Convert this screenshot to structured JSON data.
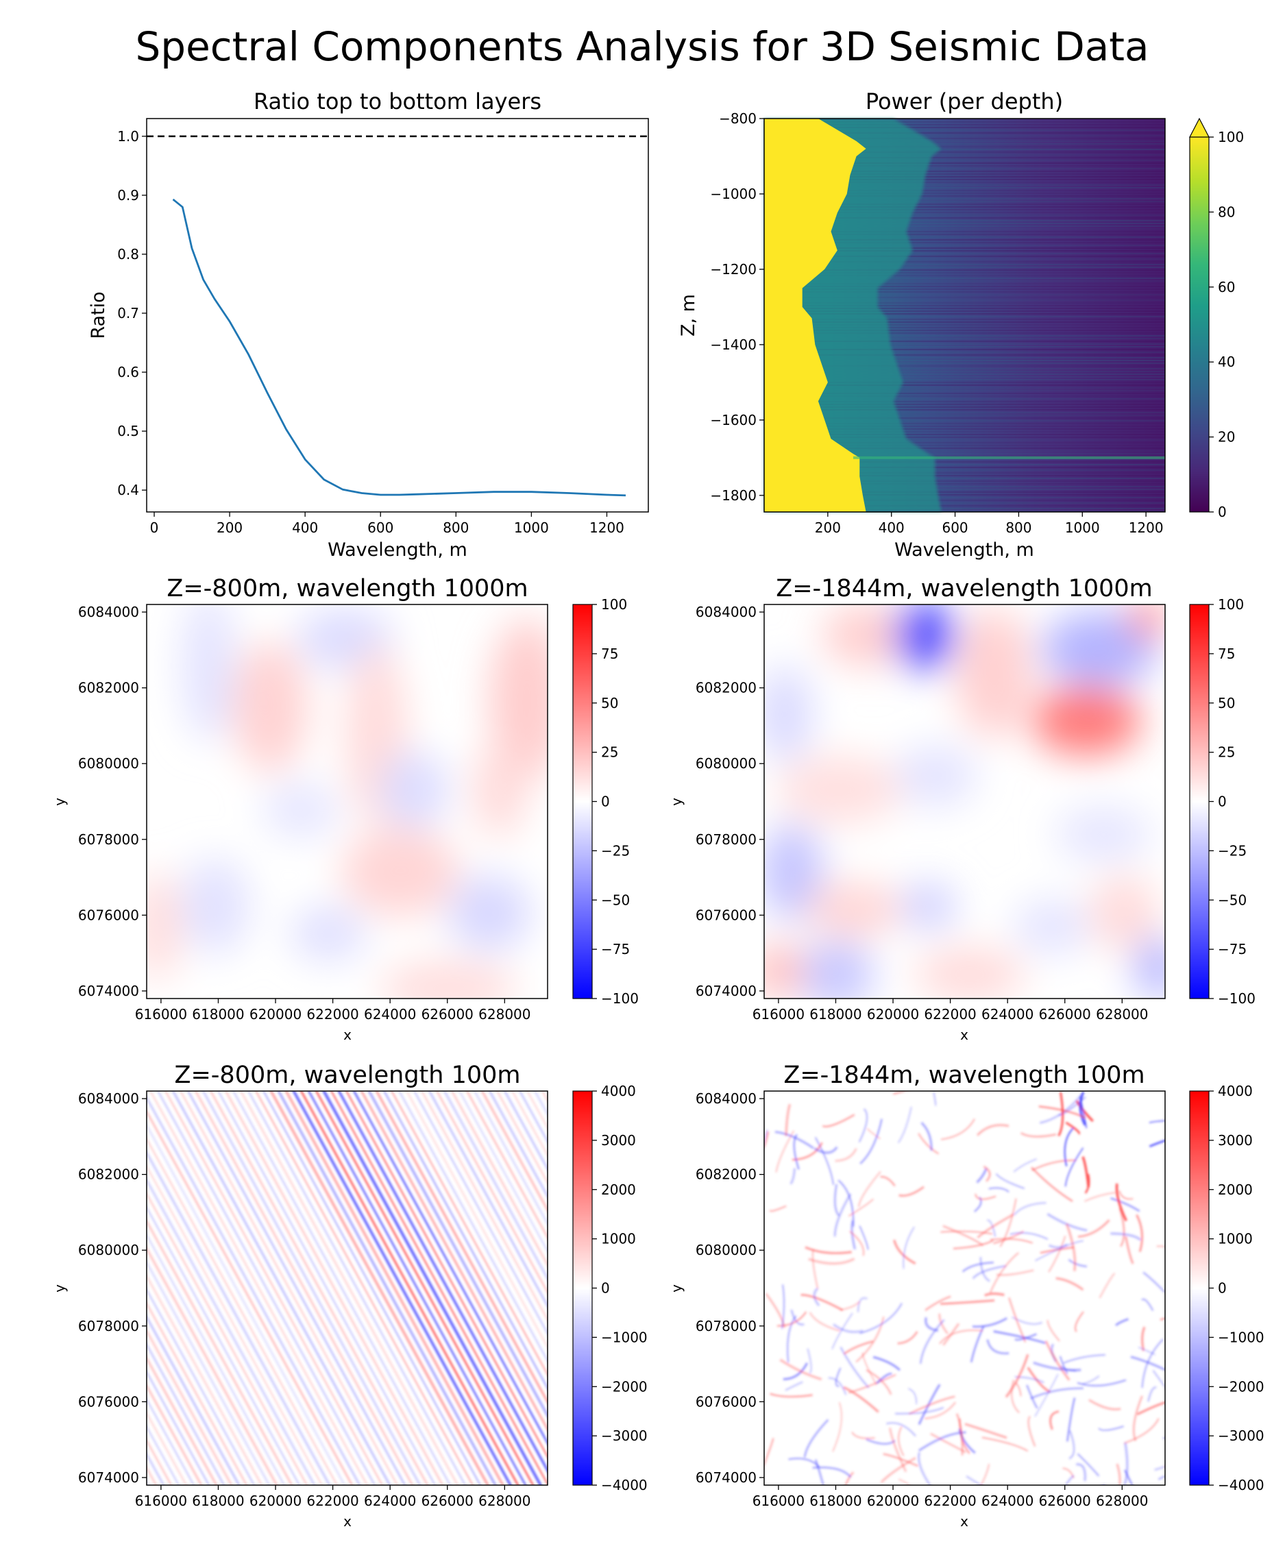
{
  "figure": {
    "title": "Spectral Components Analysis for 3D Seismic Data"
  },
  "chart_data": [
    {
      "type": "line",
      "title": "Ratio top to bottom layers",
      "xlabel": "Wavelength, m",
      "ylabel": "Ratio",
      "xlim": [
        -20,
        1310
      ],
      "ylim": [
        0.363,
        1.03
      ],
      "xticks": [
        0,
        200,
        400,
        600,
        800,
        1000,
        1200
      ],
      "yticks": [
        0.4,
        0.5,
        0.6,
        0.7,
        0.8,
        0.9,
        1.0
      ],
      "ytick_labels": [
        "0.4",
        "0.5",
        "0.6",
        "0.7",
        "0.8",
        "0.9",
        "1.0"
      ],
      "reference_line": {
        "y": 1.0,
        "style": "dashed",
        "color": "#000000"
      },
      "series": [
        {
          "color": "#1f77b4",
          "x": [
            50,
            75,
            100,
            130,
            160,
            200,
            250,
            300,
            350,
            400,
            450,
            500,
            550,
            600,
            650,
            700,
            800,
            900,
            1000,
            1100,
            1200,
            1250
          ],
          "y": [
            0.893,
            0.88,
            0.81,
            0.757,
            0.724,
            0.686,
            0.63,
            0.565,
            0.503,
            0.452,
            0.418,
            0.401,
            0.395,
            0.392,
            0.392,
            0.393,
            0.395,
            0.397,
            0.397,
            0.395,
            0.392,
            0.391
          ]
        }
      ]
    },
    {
      "type": "heatmap",
      "title": "Power (per depth)",
      "xlabel": "Wavelength, m",
      "ylabel": "Z, m",
      "xlim": [
        0,
        1260
      ],
      "ylim": [
        -1844,
        -800
      ],
      "xticks": [
        200,
        400,
        600,
        800,
        1000,
        1200
      ],
      "yticks": [
        -800,
        -1000,
        -1200,
        -1400,
        -1600,
        -1800
      ],
      "ytick_labels": [
        "−800",
        "−1000",
        "−1200",
        "−1400",
        "−1600",
        "−1800"
      ],
      "colormap": "viridis",
      "clim": [
        0,
        100
      ],
      "colorbar_ticks": [
        0,
        20,
        40,
        60,
        80,
        100
      ],
      "colorbar_extend": "max",
      "saturated_boundary": {
        "z": [
          -800,
          -830,
          -860,
          -880,
          -900,
          -950,
          -1000,
          -1050,
          -1100,
          -1150,
          -1200,
          -1250,
          -1300,
          -1330,
          -1400,
          -1450,
          -1500,
          -1550,
          -1600,
          -1650,
          -1690,
          -1700,
          -1750,
          -1800,
          -1844
        ],
        "wavelength": [
          170,
          230,
          290,
          320,
          290,
          270,
          260,
          230,
          210,
          230,
          190,
          120,
          120,
          150,
          160,
          180,
          200,
          170,
          190,
          210,
          280,
          300,
          300,
          310,
          320
        ]
      }
    },
    {
      "type": "heatmap",
      "title": "Z=-800m, wavelength 1000m",
      "xlabel": "x",
      "ylabel": "y",
      "xlim": [
        615500,
        629500
      ],
      "ylim": [
        6073800,
        6084200
      ],
      "xticks": [
        616000,
        618000,
        620000,
        622000,
        624000,
        626000,
        628000
      ],
      "yticks": [
        6074000,
        6076000,
        6078000,
        6080000,
        6082000,
        6084000
      ],
      "colormap": "bwr",
      "clim": [
        -100,
        100
      ],
      "colorbar_ticks": [
        -100,
        -75,
        -50,
        -25,
        0,
        25,
        50,
        75,
        100
      ],
      "colorbar_tick_labels": [
        "−100",
        "−75",
        "−50",
        "−25",
        "0",
        "25",
        "50",
        "75",
        "100"
      ]
    },
    {
      "type": "heatmap",
      "title": "Z=-1844m, wavelength 1000m",
      "xlabel": "x",
      "ylabel": "y",
      "xlim": [
        615500,
        629500
      ],
      "ylim": [
        6073800,
        6084200
      ],
      "xticks": [
        616000,
        618000,
        620000,
        622000,
        624000,
        626000,
        628000
      ],
      "yticks": [
        6074000,
        6076000,
        6078000,
        6080000,
        6082000,
        6084000
      ],
      "colormap": "bwr",
      "clim": [
        -100,
        100
      ],
      "colorbar_ticks": [
        -100,
        -75,
        -50,
        -25,
        0,
        25,
        50,
        75,
        100
      ],
      "colorbar_tick_labels": [
        "−100",
        "−75",
        "−50",
        "−25",
        "0",
        "25",
        "50",
        "75",
        "100"
      ]
    },
    {
      "type": "heatmap",
      "title": "Z=-800m, wavelength 100m",
      "xlabel": "x",
      "ylabel": "y",
      "xlim": [
        615500,
        629500
      ],
      "ylim": [
        6073800,
        6084200
      ],
      "xticks": [
        616000,
        618000,
        620000,
        622000,
        624000,
        626000,
        628000
      ],
      "yticks": [
        6074000,
        6076000,
        6078000,
        6080000,
        6082000,
        6084000
      ],
      "colormap": "bwr",
      "clim": [
        -4000,
        4000
      ],
      "colorbar_ticks": [
        -4000,
        -3000,
        -2000,
        -1000,
        0,
        1000,
        2000,
        3000,
        4000
      ],
      "colorbar_tick_labels": [
        "−4000",
        "−3000",
        "−2000",
        "−1000",
        "0",
        "1000",
        "2000",
        "3000",
        "4000"
      ]
    },
    {
      "type": "heatmap",
      "title": "Z=-1844m, wavelength 100m",
      "xlabel": "x",
      "ylabel": "y",
      "xlim": [
        615500,
        629500
      ],
      "ylim": [
        6073800,
        6084200
      ],
      "xticks": [
        616000,
        618000,
        620000,
        622000,
        624000,
        626000,
        628000
      ],
      "yticks": [
        6074000,
        6076000,
        6078000,
        6080000,
        6082000,
        6084000
      ],
      "colormap": "bwr",
      "clim": [
        -4000,
        4000
      ],
      "colorbar_ticks": [
        -4000,
        -3000,
        -2000,
        -1000,
        0,
        1000,
        2000,
        3000,
        4000
      ],
      "colorbar_tick_labels": [
        "−4000",
        "−3000",
        "−2000",
        "−1000",
        "0",
        "1000",
        "2000",
        "3000",
        "4000"
      ]
    }
  ]
}
